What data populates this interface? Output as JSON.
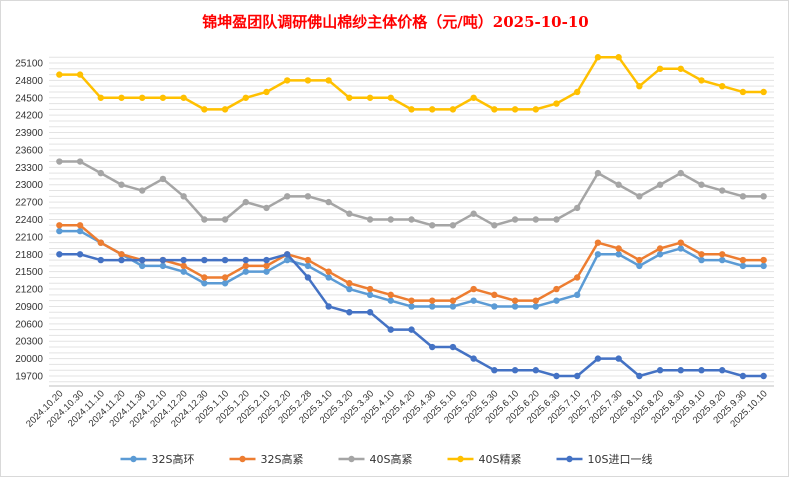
{
  "chart_data": {
    "type": "line",
    "title": "锦坤盈团队调研佛山棉纱主体价格（元/吨）2025-10-10",
    "xlabel": "",
    "ylabel": "",
    "ylim": [
      19700,
      25100
    ],
    "yticks": [
      19700,
      20000,
      20300,
      20600,
      20900,
      21200,
      21500,
      21800,
      22100,
      22400,
      22700,
      23000,
      23300,
      23600,
      23900,
      24200,
      24500,
      24800,
      25100
    ],
    "grid": true,
    "legend_position": "bottom",
    "categories": [
      "2024.10.20",
      "2024.10.30",
      "2024.11.10",
      "2024.11.20",
      "2024.11.30",
      "2024.12.10",
      "2024.12.20",
      "2024.12.30",
      "2025.1.10",
      "2025.1.20",
      "2025.2.10",
      "2025.2.20",
      "2025.2.28",
      "2025.3.10",
      "2025.3.20",
      "2025.3.30",
      "2025.4.10",
      "2025.4.20",
      "2025.4.30",
      "2025.5.10",
      "2025.5.20",
      "2025.5.30",
      "2025.6.10",
      "2025.6.20",
      "2025.6.30",
      "2025.7.10",
      "2025.7.20",
      "2025.7.30",
      "2025.8.10",
      "2025.8.20",
      "2025.8.30",
      "2025.9.10",
      "2025.9.20",
      "2025.9.30",
      "2025.10.10"
    ],
    "series": [
      {
        "name": "32S高环",
        "color": "#5b9bd5",
        "values": [
          22200,
          22200,
          22000,
          21800,
          21600,
          21600,
          21500,
          21300,
          21300,
          21500,
          21500,
          21700,
          21600,
          21400,
          21200,
          21100,
          21000,
          20900,
          20900,
          20900,
          21000,
          20900,
          20900,
          20900,
          21000,
          21100,
          21800,
          21800,
          21600,
          21800,
          21900,
          21700,
          21700,
          21600,
          21600
        ]
      },
      {
        "name": "32S高紧",
        "color": "#ed7d31",
        "values": [
          22300,
          22300,
          22000,
          21800,
          21700,
          21700,
          21600,
          21400,
          21400,
          21600,
          21600,
          21800,
          21700,
          21500,
          21300,
          21200,
          21100,
          21000,
          21000,
          21000,
          21200,
          21100,
          21000,
          21000,
          21200,
          21400,
          22000,
          21900,
          21700,
          21900,
          22000,
          21800,
          21800,
          21700,
          21700
        ]
      },
      {
        "name": "40S高紧",
        "color": "#a5a5a5",
        "values": [
          23400,
          23400,
          23200,
          23000,
          22900,
          23100,
          22800,
          22400,
          22400,
          22700,
          22600,
          22800,
          22800,
          22700,
          22500,
          22400,
          22400,
          22400,
          22300,
          22300,
          22500,
          22300,
          22400,
          22400,
          22400,
          22600,
          23200,
          23000,
          22800,
          23000,
          23200,
          23000,
          22900,
          22800,
          22800
        ]
      },
      {
        "name": "40S精紧",
        "color": "#ffc000",
        "values": [
          24900,
          24900,
          24500,
          24500,
          24500,
          24500,
          24500,
          24300,
          24300,
          24500,
          24600,
          24800,
          24800,
          24800,
          24500,
          24500,
          24500,
          24300,
          24300,
          24300,
          24500,
          24300,
          24300,
          24300,
          24400,
          24600,
          25200,
          25200,
          24700,
          25000,
          25000,
          24800,
          24700,
          24600,
          24600
        ]
      },
      {
        "name": "10S进口一线",
        "color": "#4472c4",
        "values": [
          21800,
          21800,
          21700,
          21700,
          21700,
          21700,
          21700,
          21700,
          21700,
          21700,
          21700,
          21800,
          21400,
          20900,
          20800,
          20800,
          20500,
          20500,
          20200,
          20200,
          20000,
          19800,
          19800,
          19800,
          19700,
          19700,
          20000,
          20000,
          19700,
          19800,
          19800,
          19800,
          19800,
          19700,
          19700
        ]
      }
    ]
  }
}
